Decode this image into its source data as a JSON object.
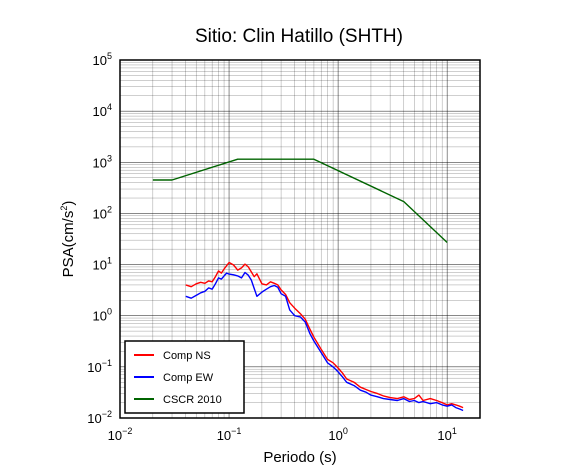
{
  "chart_data": {
    "type": "line",
    "title": "Sitio: Clin Hatillo (SHTH)",
    "xlabel": "Periodo (s)",
    "ylabel_main": "PSA(cm/s",
    "ylabel_sup": "2",
    "ylabel_close": ")",
    "xscale": "log",
    "yscale": "log",
    "xlim": [
      0.01,
      20
    ],
    "ylim": [
      0.01,
      100000
    ],
    "grid": true,
    "legend_position": "bottom-left",
    "x_ticks": [
      {
        "base": "10",
        "exp": "−2"
      },
      {
        "base": "10",
        "exp": "−1"
      },
      {
        "base": "10",
        "exp": "0"
      },
      {
        "base": "10",
        "exp": "1"
      }
    ],
    "y_ticks": [
      {
        "base": "10",
        "exp": "−2"
      },
      {
        "base": "10",
        "exp": "−1"
      },
      {
        "base": "10",
        "exp": "0"
      },
      {
        "base": "10",
        "exp": "1"
      },
      {
        "base": "10",
        "exp": "2"
      },
      {
        "base": "10",
        "exp": "3"
      },
      {
        "base": "10",
        "exp": "4"
      },
      {
        "base": "10",
        "exp": "5"
      }
    ],
    "series": [
      {
        "name": "Comp NS",
        "color": "#ff0000",
        "x": [
          0.04,
          0.045,
          0.05,
          0.055,
          0.06,
          0.065,
          0.07,
          0.075,
          0.08,
          0.085,
          0.09,
          0.095,
          0.1,
          0.11,
          0.12,
          0.13,
          0.14,
          0.15,
          0.16,
          0.17,
          0.18,
          0.2,
          0.22,
          0.24,
          0.26,
          0.28,
          0.3,
          0.33,
          0.36,
          0.4,
          0.45,
          0.5,
          0.55,
          0.6,
          0.7,
          0.8,
          0.9,
          1.0,
          1.1,
          1.2,
          1.4,
          1.6,
          1.8,
          2.0,
          2.3,
          2.6,
          3.0,
          3.5,
          4.0,
          4.5,
          5.0,
          5.5,
          6.0,
          7.0,
          8.0,
          9.0,
          10.0,
          11.0,
          12.0,
          13.0,
          14.0
        ],
        "y": [
          4.0,
          3.7,
          4.2,
          4.5,
          4.3,
          4.8,
          4.6,
          5.8,
          7.5,
          6.8,
          8.2,
          9.5,
          11.0,
          9.8,
          7.8,
          8.6,
          10.2,
          9.0,
          7.2,
          5.8,
          6.6,
          4.2,
          4.0,
          4.6,
          4.3,
          4.0,
          3.2,
          2.6,
          1.8,
          1.4,
          1.1,
          0.85,
          0.55,
          0.38,
          0.22,
          0.14,
          0.12,
          0.095,
          0.075,
          0.058,
          0.05,
          0.04,
          0.036,
          0.033,
          0.03,
          0.027,
          0.025,
          0.024,
          0.026,
          0.023,
          0.024,
          0.028,
          0.022,
          0.024,
          0.022,
          0.02,
          0.018,
          0.019,
          0.018,
          0.017,
          0.016
        ]
      },
      {
        "name": "Comp EW",
        "color": "#0000ff",
        "x": [
          0.04,
          0.045,
          0.05,
          0.055,
          0.06,
          0.065,
          0.07,
          0.075,
          0.08,
          0.085,
          0.09,
          0.095,
          0.1,
          0.11,
          0.12,
          0.13,
          0.14,
          0.15,
          0.16,
          0.17,
          0.18,
          0.2,
          0.22,
          0.24,
          0.26,
          0.28,
          0.3,
          0.33,
          0.36,
          0.4,
          0.45,
          0.5,
          0.55,
          0.6,
          0.7,
          0.8,
          0.9,
          1.0,
          1.1,
          1.2,
          1.4,
          1.6,
          1.8,
          2.0,
          2.3,
          2.6,
          3.0,
          3.5,
          4.0,
          4.5,
          5.0,
          5.5,
          6.0,
          7.0,
          8.0,
          9.0,
          10.0,
          11.0,
          12.0,
          13.0,
          14.0
        ],
        "y": [
          2.4,
          2.2,
          2.5,
          2.8,
          3.0,
          3.5,
          3.3,
          4.2,
          5.5,
          5.2,
          6.0,
          6.8,
          6.5,
          6.3,
          6.0,
          5.5,
          7.0,
          6.2,
          5.0,
          3.4,
          2.4,
          2.9,
          3.3,
          3.7,
          3.9,
          3.6,
          2.7,
          2.4,
          1.3,
          1.0,
          0.95,
          0.75,
          0.45,
          0.32,
          0.19,
          0.12,
          0.1,
          0.08,
          0.063,
          0.05,
          0.043,
          0.035,
          0.032,
          0.028,
          0.026,
          0.024,
          0.023,
          0.022,
          0.024,
          0.021,
          0.022,
          0.02,
          0.021,
          0.019,
          0.02,
          0.018,
          0.017,
          0.018,
          0.016,
          0.015,
          0.014
        ]
      },
      {
        "name": "CSCR 2010",
        "color": "#006400",
        "x": [
          0.02,
          0.03,
          0.12,
          0.6,
          4.0,
          10.0
        ],
        "y": [
          450,
          450,
          1150,
          1150,
          170,
          27
        ]
      }
    ]
  }
}
